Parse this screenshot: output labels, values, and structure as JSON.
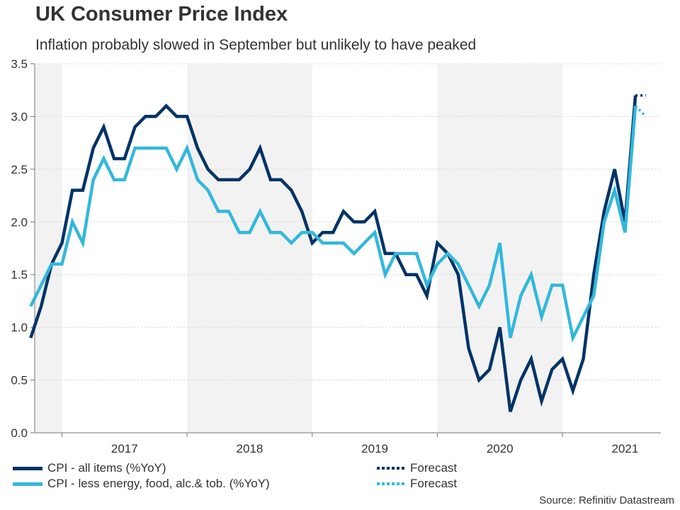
{
  "header": {
    "title": "UK Consumer Price Index",
    "subtitle": "Inflation probably slowed in September but unlikely to have peaked"
  },
  "colors": {
    "cpi_all": "#003366",
    "cpi_core": "#33b8db",
    "shade": "#f2f2f2",
    "grid": "#dddddd",
    "axis": "#777777"
  },
  "legend": [
    {
      "label": "CPI - all items (%YoY)",
      "style": "solid",
      "color": "#003366"
    },
    {
      "label": "CPI - less energy, food, alc.& tob. (%YoY)",
      "style": "solid",
      "color": "#33b8db"
    },
    {
      "label": "Forecast",
      "style": "dotted",
      "color": "#003366"
    },
    {
      "label": "Forecast",
      "style": "dotted",
      "color": "#33b8db"
    }
  ],
  "source": "Source: Refinitiv Datastream",
  "chart_data": {
    "type": "line",
    "title": "UK Consumer Price Index",
    "subtitle": "Inflation probably slowed in September but unlikely to have peaked",
    "xlabel": "",
    "ylabel": "",
    "ylim": [
      0,
      3.5
    ],
    "yticks": [
      "0.0",
      "0.5",
      "1.0",
      "1.5",
      "2.0",
      "2.5",
      "3.0",
      "3.5"
    ],
    "xticks": [
      "2017",
      "2018",
      "2019",
      "2020",
      "2021"
    ],
    "shaded_years": [
      "2016",
      "2018",
      "2020"
    ],
    "grid": true,
    "legend_position": "bottom",
    "x": [
      "2016-10",
      "2016-11",
      "2016-12",
      "2017-01",
      "2017-02",
      "2017-03",
      "2017-04",
      "2017-05",
      "2017-06",
      "2017-07",
      "2017-08",
      "2017-09",
      "2017-10",
      "2017-11",
      "2017-12",
      "2018-01",
      "2018-02",
      "2018-03",
      "2018-04",
      "2018-05",
      "2018-06",
      "2018-07",
      "2018-08",
      "2018-09",
      "2018-10",
      "2018-11",
      "2018-12",
      "2019-01",
      "2019-02",
      "2019-03",
      "2019-04",
      "2019-05",
      "2019-06",
      "2019-07",
      "2019-08",
      "2019-09",
      "2019-10",
      "2019-11",
      "2019-12",
      "2020-01",
      "2020-02",
      "2020-03",
      "2020-04",
      "2020-05",
      "2020-06",
      "2020-07",
      "2020-08",
      "2020-09",
      "2020-10",
      "2020-11",
      "2020-12",
      "2021-01",
      "2021-02",
      "2021-03",
      "2021-04",
      "2021-05",
      "2021-06",
      "2021-07",
      "2021-08"
    ],
    "series": [
      {
        "name": "CPI - all items (%YoY)",
        "color": "#003366",
        "values": [
          0.9,
          1.2,
          1.6,
          1.8,
          2.3,
          2.3,
          2.7,
          2.9,
          2.6,
          2.6,
          2.9,
          3.0,
          3.0,
          3.1,
          3.0,
          3.0,
          2.7,
          2.5,
          2.4,
          2.4,
          2.4,
          2.5,
          2.7,
          2.4,
          2.4,
          2.3,
          2.1,
          1.8,
          1.9,
          1.9,
          2.1,
          2.0,
          2.0,
          2.1,
          1.7,
          1.7,
          1.5,
          1.5,
          1.3,
          1.8,
          1.7,
          1.5,
          0.8,
          0.5,
          0.6,
          1.0,
          0.2,
          0.5,
          0.7,
          0.3,
          0.6,
          0.7,
          0.4,
          0.7,
          1.5,
          2.1,
          2.5,
          2.0,
          3.2
        ]
      },
      {
        "name": "CPI - less energy, food, alc.& tob. (%YoY)",
        "color": "#33b8db",
        "values": [
          1.2,
          1.4,
          1.6,
          1.6,
          2.0,
          1.8,
          2.4,
          2.6,
          2.4,
          2.4,
          2.7,
          2.7,
          2.7,
          2.7,
          2.5,
          2.7,
          2.4,
          2.3,
          2.1,
          2.1,
          1.9,
          1.9,
          2.1,
          1.9,
          1.9,
          1.8,
          1.9,
          1.9,
          1.8,
          1.8,
          1.8,
          1.7,
          1.8,
          1.9,
          1.5,
          1.7,
          1.7,
          1.7,
          1.4,
          1.6,
          1.7,
          1.6,
          1.4,
          1.2,
          1.4,
          1.8,
          0.9,
          1.3,
          1.5,
          1.1,
          1.4,
          1.4,
          0.9,
          1.1,
          1.3,
          2.0,
          2.3,
          1.9,
          3.1
        ]
      },
      {
        "name": "Forecast (CPI - all items)",
        "color": "#003366",
        "style": "dotted",
        "x": [
          "2021-08",
          "2021-09"
        ],
        "values": [
          3.2,
          3.2
        ]
      },
      {
        "name": "Forecast (CPI - core)",
        "color": "#33b8db",
        "style": "dotted",
        "x": [
          "2021-08",
          "2021-09"
        ],
        "values": [
          3.1,
          3.0
        ]
      }
    ]
  }
}
